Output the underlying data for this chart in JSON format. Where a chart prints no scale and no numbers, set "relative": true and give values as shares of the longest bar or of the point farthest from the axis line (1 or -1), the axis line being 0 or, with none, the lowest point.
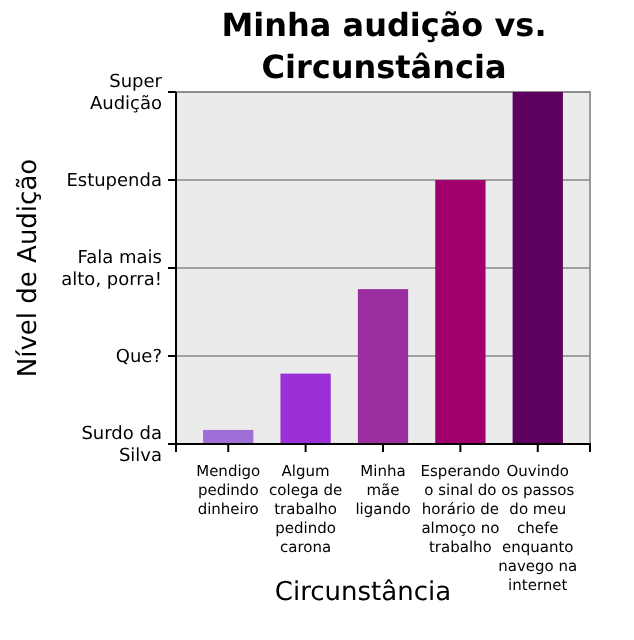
{
  "chart_data": {
    "type": "bar",
    "title": "Minha audição vs. Circunstância",
    "xlabel": "Circunstância",
    "categories": [
      "Mendigo pedindo dinheiro",
      "Algum colega de trabalho pedindo carona",
      "Minha mãe ligando",
      "Esperando o sinal do horário de almoço no trabalho",
      "Ouvindo os passos do meu chefe enquanto navego na internet"
    ],
    "values": [
      0.04,
      0.2,
      0.44,
      0.75,
      1
    ],
    "colors": [
      "#9f6fd8",
      "#9b30d9",
      "#9b2f9f",
      "#a0006e",
      "#5e0060"
    ],
    "relative": true,
    "annotations": [
      "Nível de Audição",
      "Super Audição",
      "Estupenda",
      "Fala mais alto, porra!",
      "Que?",
      "Surdo da Silva"
    ],
    "grid": "y"
  }
}
